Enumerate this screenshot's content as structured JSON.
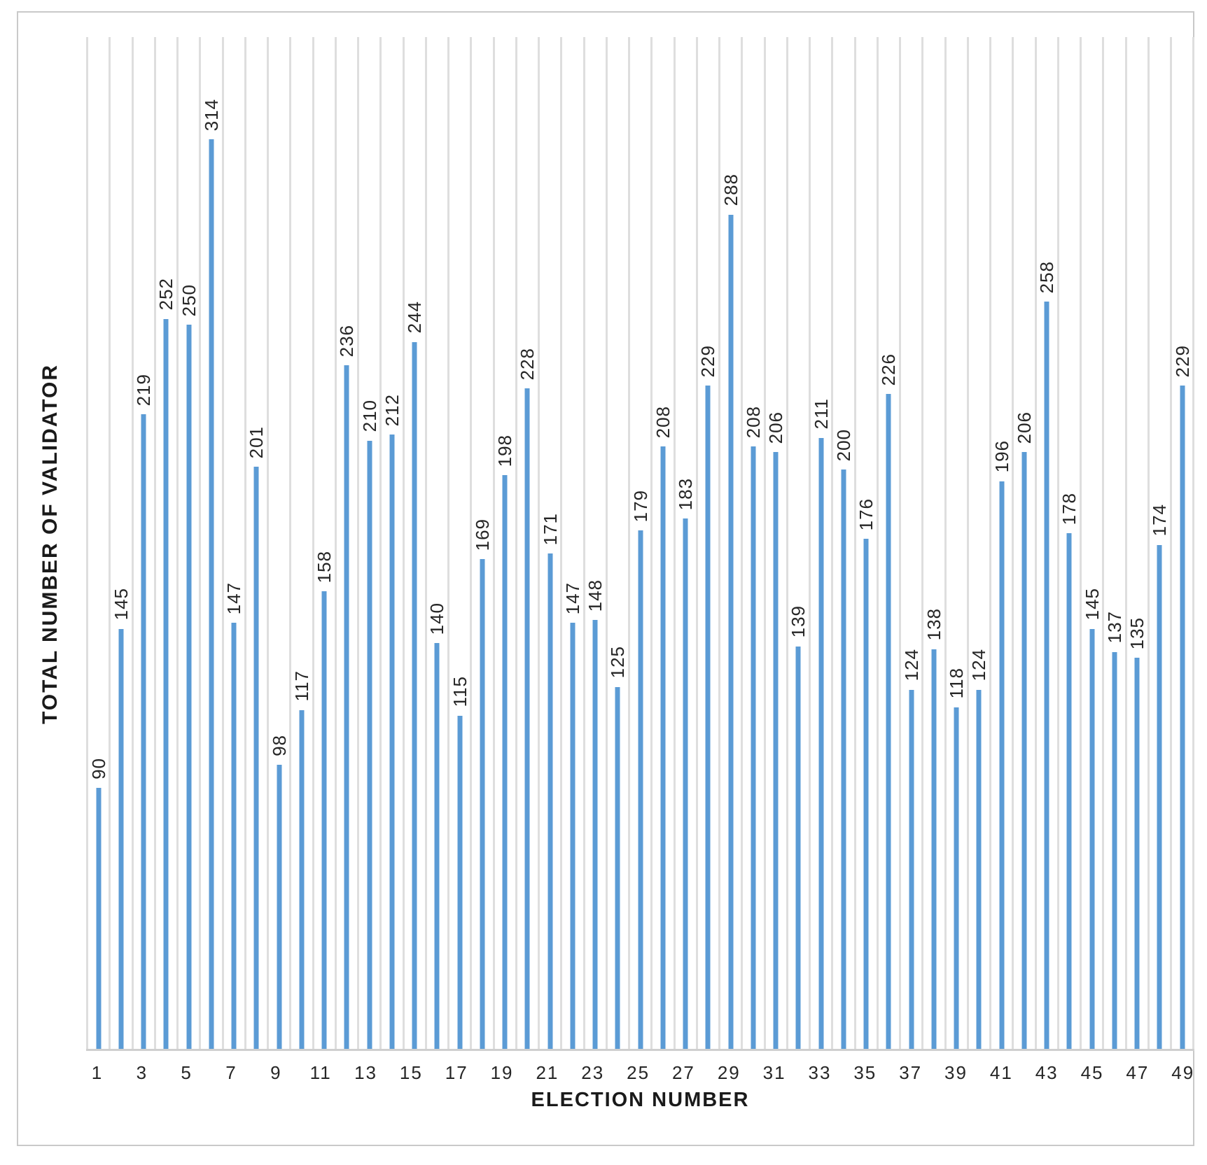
{
  "chart_data": {
    "type": "bar",
    "title": "",
    "xlabel": "ELECTION NUMBER",
    "ylabel": "TOTAL NUMBER OF VALIDATOR",
    "x": [
      1,
      2,
      3,
      4,
      5,
      6,
      7,
      8,
      9,
      10,
      11,
      12,
      13,
      14,
      15,
      16,
      17,
      18,
      19,
      20,
      21,
      22,
      23,
      24,
      25,
      26,
      27,
      28,
      29,
      30,
      31,
      32,
      33,
      34,
      35,
      36,
      37,
      38,
      39,
      40,
      41,
      42,
      43,
      44,
      45,
      46,
      47,
      48,
      49
    ],
    "values": [
      90,
      145,
      219,
      252,
      250,
      314,
      147,
      201,
      98,
      117,
      158,
      236,
      210,
      212,
      244,
      140,
      115,
      169,
      198,
      228,
      171,
      147,
      148,
      125,
      179,
      208,
      183,
      229,
      288,
      208,
      206,
      139,
      211,
      200,
      176,
      226,
      124,
      138,
      118,
      124,
      196,
      206,
      258,
      178,
      145,
      137,
      135,
      174,
      229
    ],
    "x_tick_labels": [
      "1",
      "3",
      "5",
      "7",
      "9",
      "11",
      "13",
      "15",
      "17",
      "19",
      "21",
      "23",
      "25",
      "27",
      "29",
      "31",
      "33",
      "35",
      "37",
      "39",
      "41",
      "43",
      "45",
      "47",
      "49"
    ],
    "ylim": [
      0,
      350
    ],
    "grid": "vertical",
    "legend": "none",
    "data_labels": true,
    "data_label_rotation": 270,
    "colors": {
      "bar": "#5B9BD5",
      "gridline": "#DEDEDE",
      "axis_line": "#CFCFCF",
      "frame_border": "#C9C9C9",
      "text": "#262626"
    }
  }
}
